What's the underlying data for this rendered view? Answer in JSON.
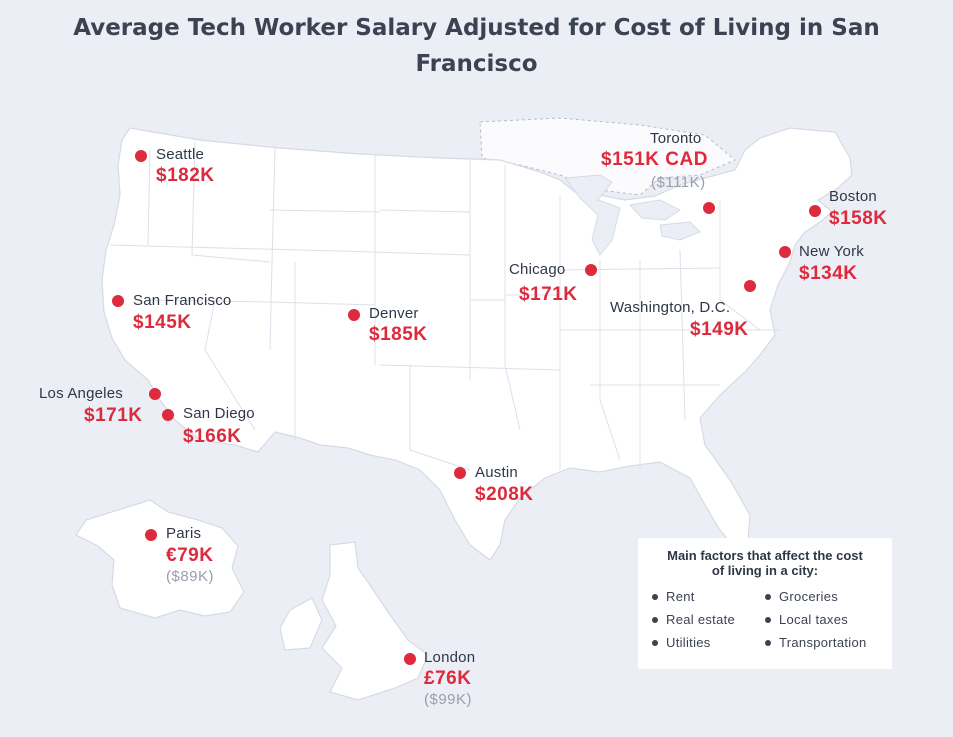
{
  "title": {
    "line1": "Average Tech Worker Salary Adjusted for Cost of Living in San",
    "line2": "Francisco"
  },
  "colors": {
    "background": "#eceef6",
    "land": "#ffffff",
    "marker": "#dd2a3c",
    "salary_text": "#dd2a3c",
    "usd_text": "#9a9ea8",
    "label_text": "#2f3747"
  },
  "cities": {
    "seattle": {
      "name": "Seattle",
      "salary": "$182K"
    },
    "toronto": {
      "name": "Toronto",
      "salary": "$151K CAD",
      "usd": "($111K)"
    },
    "boston": {
      "name": "Boston",
      "salary": "$158K"
    },
    "new_york": {
      "name": "New York",
      "salary": "$134K"
    },
    "chicago": {
      "name": "Chicago",
      "salary": "$171K"
    },
    "washington": {
      "name": "Washington, D.C.",
      "salary": "$149K"
    },
    "san_francisco": {
      "name": "San Francisco",
      "salary": "$145K"
    },
    "denver": {
      "name": "Denver",
      "salary": "$185K"
    },
    "los_angeles": {
      "name": "Los Angeles",
      "salary": "$171K"
    },
    "san_diego": {
      "name": "San Diego",
      "salary": "$166K"
    },
    "austin": {
      "name": "Austin",
      "salary": "$208K"
    },
    "paris": {
      "name": "Paris",
      "salary": "€79K",
      "usd": "($89K)"
    },
    "london": {
      "name": "London",
      "salary": "£76K",
      "usd": "($99K)"
    }
  },
  "legend": {
    "title_line1": "Main factors that affect the cost",
    "title_line2": "of living in a city:",
    "items": [
      "Rent",
      "Groceries",
      "Real estate",
      "Local taxes",
      "Utilities",
      "Transportation"
    ]
  }
}
